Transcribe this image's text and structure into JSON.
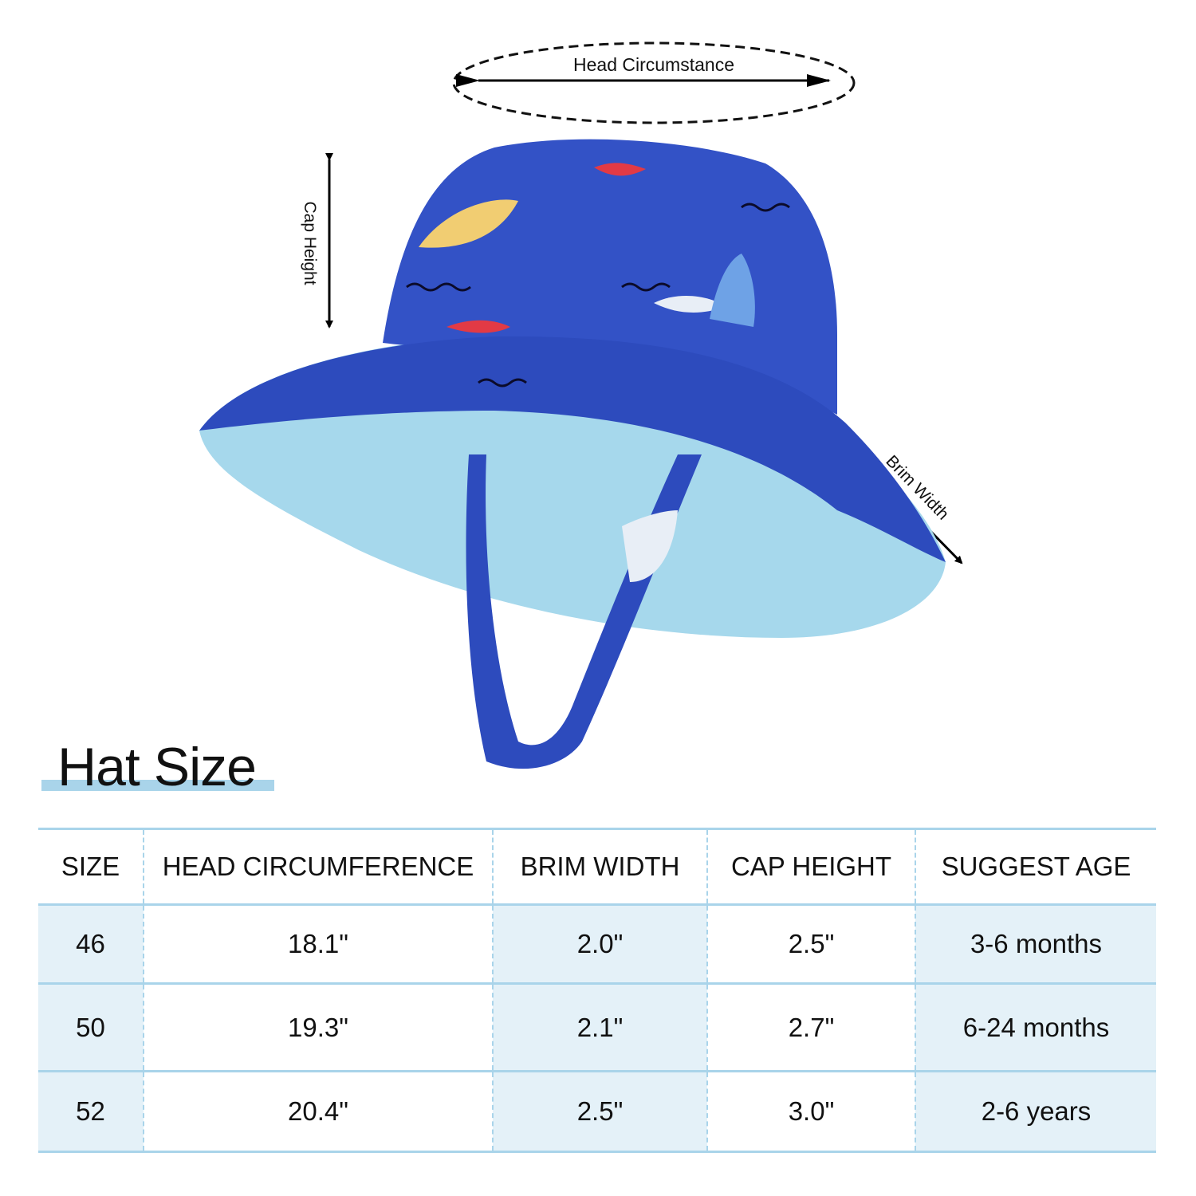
{
  "annotations": {
    "head_circumference": "Head Circumstance",
    "cap_height": "Cap Height",
    "brim_width": "Brim Width"
  },
  "title": "Hat Size",
  "colors": {
    "hat_outer": "#2f4fc4",
    "hat_inner": "#a6d8ec",
    "accent_bar": "#a9d4ea",
    "row_tint": "#e4f1f8"
  },
  "table": {
    "headers": [
      "SIZE",
      "HEAD CIRCUMFERENCE",
      "BRIM WIDTH",
      "CAP HEIGHT",
      "SUGGEST AGE"
    ],
    "rows": [
      [
        "46",
        "18.1\"",
        "2.0\"",
        "2.5\"",
        "3-6 months"
      ],
      [
        "50",
        "19.3\"",
        "2.1\"",
        "2.7\"",
        "6-24 months"
      ],
      [
        "52",
        "20.4\"",
        "2.5\"",
        "3.0\"",
        "2-6 years"
      ]
    ]
  }
}
